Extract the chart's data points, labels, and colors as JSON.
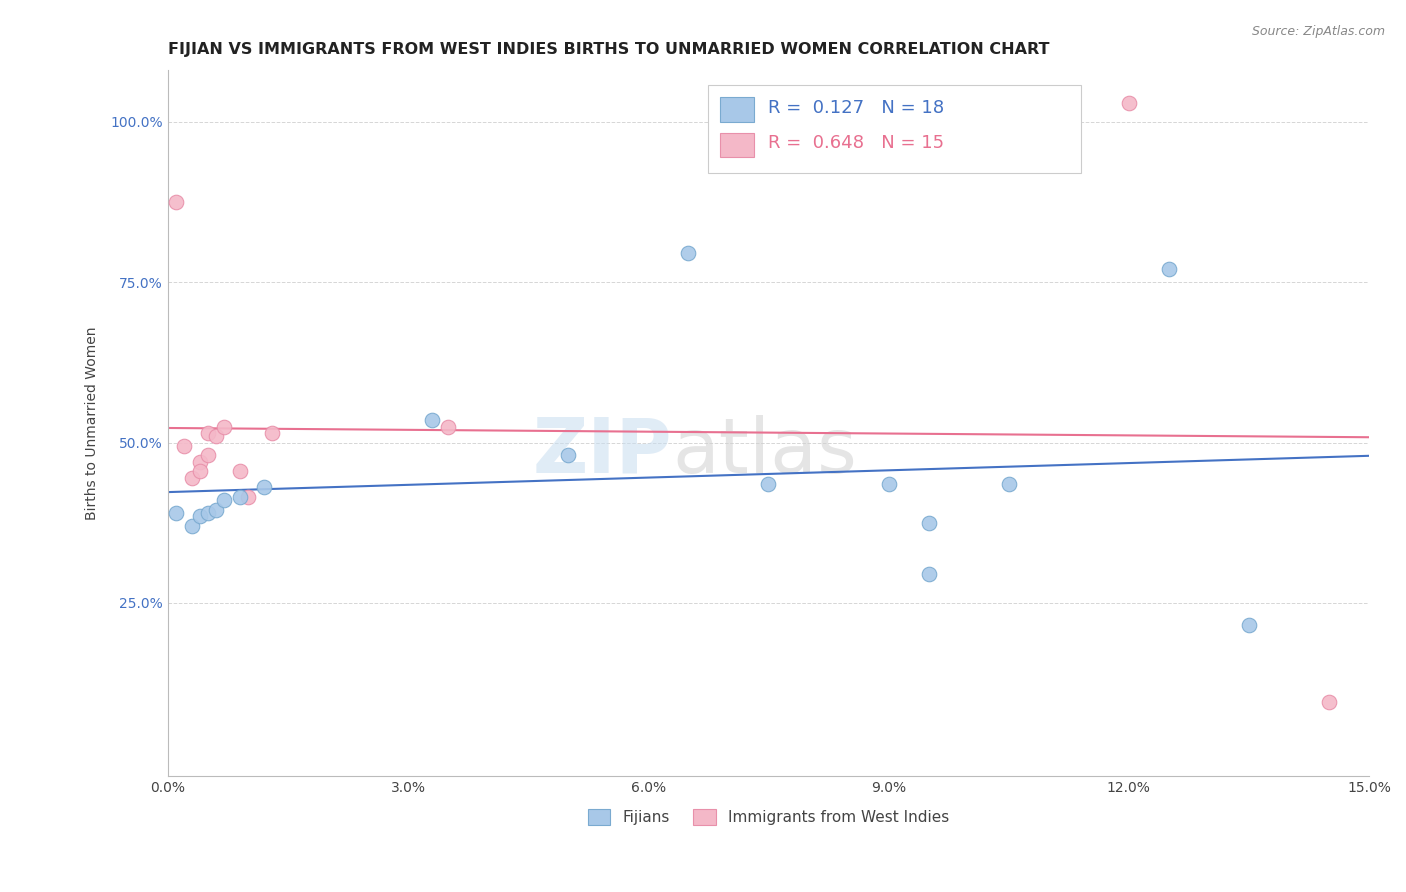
{
  "title": "FIJIAN VS IMMIGRANTS FROM WEST INDIES BIRTHS TO UNMARRIED WOMEN CORRELATION CHART",
  "source": "Source: ZipAtlas.com",
  "ylabel": "Births to Unmarried Women",
  "xlim": [
    0.0,
    0.15
  ],
  "ylim": [
    -0.02,
    1.08
  ],
  "xticks": [
    0.0,
    0.03,
    0.06,
    0.09,
    0.12,
    0.15
  ],
  "xticklabels": [
    "0.0%",
    "3.0%",
    "6.0%",
    "9.0%",
    "12.0%",
    "15.0%"
  ],
  "yticks": [
    0.25,
    0.5,
    0.75,
    1.0
  ],
  "yticklabels": [
    "25.0%",
    "50.0%",
    "75.0%",
    "100.0%"
  ],
  "fijians_x": [
    0.001,
    0.003,
    0.004,
    0.005,
    0.006,
    0.007,
    0.009,
    0.012,
    0.033,
    0.05,
    0.065,
    0.075,
    0.09,
    0.095,
    0.095,
    0.105,
    0.125,
    0.135
  ],
  "fijians_y": [
    0.39,
    0.37,
    0.385,
    0.39,
    0.395,
    0.41,
    0.415,
    0.43,
    0.535,
    0.48,
    0.795,
    0.435,
    0.435,
    0.375,
    0.295,
    0.435,
    0.77,
    0.215
  ],
  "westindies_x": [
    0.001,
    0.002,
    0.003,
    0.004,
    0.004,
    0.005,
    0.005,
    0.006,
    0.007,
    0.009,
    0.01,
    0.013,
    0.035,
    0.12,
    0.145
  ],
  "westindies_y": [
    0.875,
    0.495,
    0.445,
    0.47,
    0.455,
    0.515,
    0.48,
    0.51,
    0.525,
    0.455,
    0.415,
    0.515,
    0.525,
    1.03,
    0.095
  ],
  "fijians_color": "#a8c8e8",
  "fijians_edge": "#7aaad0",
  "westindies_color": "#f4b8c8",
  "westindies_edge": "#e890aa",
  "trend_fijian_color": "#4472c4",
  "trend_westindies_color": "#e87090",
  "R_fijian": 0.127,
  "N_fijian": 18,
  "R_westindies": 0.648,
  "N_westindies": 15,
  "text_color_blue": "#4472c4",
  "text_color_pink": "#e87090",
  "background_color": "#ffffff",
  "grid_color": "#cccccc",
  "title_fontsize": 11.5,
  "axis_label_fontsize": 10,
  "tick_fontsize": 10,
  "marker_size": 110
}
